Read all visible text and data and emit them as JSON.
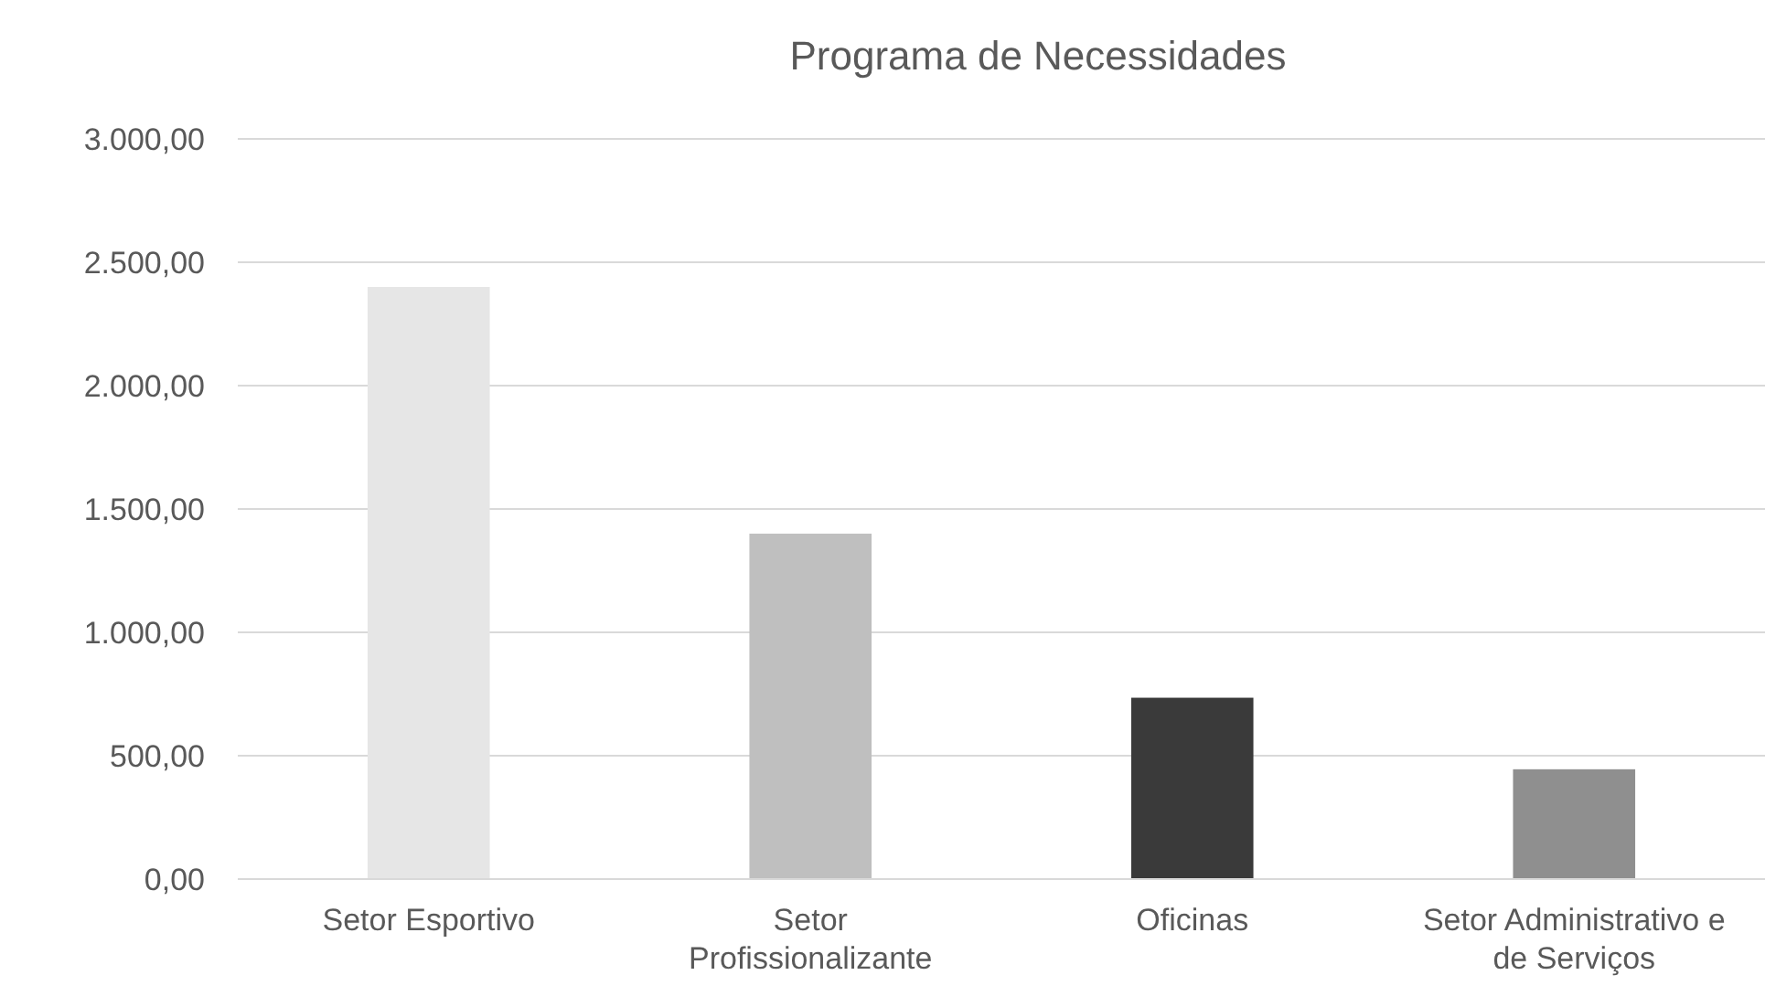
{
  "chart_data": {
    "type": "bar",
    "title": "Programa de Necessidades",
    "categories": [
      "Setor Esportivo",
      "Setor Profissionalizante",
      "Oficinas",
      "Setor Administrativo e de Serviços"
    ],
    "values": [
      2400,
      1400,
      735,
      445
    ],
    "colors": [
      "#e6e6e6",
      "#bfbfbf",
      "#3a3a3a",
      "#8f8f8f"
    ],
    "ylim": [
      0,
      3000
    ],
    "yticks": [
      {
        "value": 0,
        "label": "0,00"
      },
      {
        "value": 500,
        "label": "500,00"
      },
      {
        "value": 1000,
        "label": "1.000,00"
      },
      {
        "value": 1500,
        "label": "1.500,00"
      },
      {
        "value": 2000,
        "label": "2.000,00"
      },
      {
        "value": 2500,
        "label": "2.500,00"
      },
      {
        "value": 3000,
        "label": "3.000,00"
      }
    ],
    "grid": "y"
  }
}
